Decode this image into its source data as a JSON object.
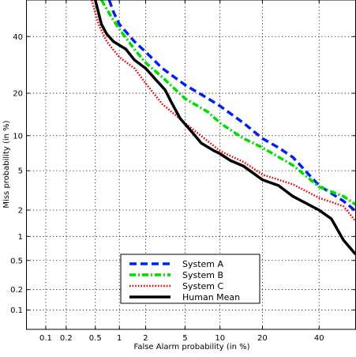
{
  "chart_data": {
    "type": "line",
    "title": "",
    "xlabel": "False Alarm probability (in %)",
    "ylabel": "Miss probability (in %)",
    "scale": "normal-deviate (DET)",
    "xlim": [
      0.05,
      55
    ],
    "ylim": [
      0.05,
      55
    ],
    "x_ticks": [
      0.1,
      0.2,
      0.5,
      1,
      2,
      5,
      10,
      20,
      40
    ],
    "x_tick_labels": [
      "0.1",
      "0.2",
      "0.5",
      "1",
      "2",
      "5",
      "10",
      "20",
      "40"
    ],
    "y_ticks": [
      0.1,
      0.2,
      0.5,
      1,
      2,
      5,
      10,
      20,
      40
    ],
    "y_tick_labels": [
      "0.1",
      "0.2",
      "0.5",
      "1",
      "2",
      "5",
      "10",
      "20",
      "40"
    ],
    "grid": true,
    "legend": "bottom-center",
    "series": [
      {
        "name": "System A",
        "color": "#0022ee",
        "style": "dashed",
        "points": [
          [
            0.75,
            55
          ],
          [
            0.85,
            50
          ],
          [
            1.0,
            45
          ],
          [
            1.5,
            38
          ],
          [
            2,
            34
          ],
          [
            3,
            28
          ],
          [
            5,
            22.5
          ],
          [
            8,
            18.5
          ],
          [
            10,
            16.5
          ],
          [
            15,
            12.5
          ],
          [
            20,
            9.5
          ],
          [
            25,
            8
          ],
          [
            30,
            6.6
          ],
          [
            40,
            3.6
          ],
          [
            50,
            2.5
          ],
          [
            55,
            1.95
          ]
        ]
      },
      {
        "name": "System B",
        "color": "#00dd00",
        "style": "dash-dot",
        "points": [
          [
            0.6,
            55
          ],
          [
            0.8,
            48
          ],
          [
            1,
            43
          ],
          [
            1.5,
            35
          ],
          [
            2,
            30
          ],
          [
            3,
            25
          ],
          [
            5,
            18.5
          ],
          [
            8,
            15
          ],
          [
            10,
            12.5
          ],
          [
            15,
            9.5
          ],
          [
            20,
            8
          ],
          [
            30,
            5.6
          ],
          [
            40,
            3.5
          ],
          [
            50,
            2.8
          ],
          [
            55,
            2.3
          ]
        ]
      },
      {
        "name": "System C",
        "color": "#ee0000",
        "style": "dotted",
        "points": [
          [
            0.45,
            55
          ],
          [
            0.55,
            45
          ],
          [
            0.7,
            38
          ],
          [
            1,
            32
          ],
          [
            1.5,
            28
          ],
          [
            2,
            23
          ],
          [
            3,
            17
          ],
          [
            5,
            12.5
          ],
          [
            8,
            9
          ],
          [
            10,
            7.5
          ],
          [
            15,
            6
          ],
          [
            20,
            4.6
          ],
          [
            30,
            3.7
          ],
          [
            40,
            2.7
          ],
          [
            50,
            2.2
          ],
          [
            55,
            1.5
          ]
        ]
      },
      {
        "name": "Human Mean",
        "color": "#000000",
        "style": "solid",
        "points": [
          [
            0.5,
            55
          ],
          [
            0.6,
            45
          ],
          [
            0.7,
            41
          ],
          [
            0.85,
            38
          ],
          [
            1.2,
            35
          ],
          [
            1.5,
            31
          ],
          [
            2,
            28
          ],
          [
            2.6,
            24
          ],
          [
            3.2,
            21
          ],
          [
            3.7,
            17.5
          ],
          [
            4.5,
            13.5
          ],
          [
            6,
            10.3
          ],
          [
            7,
            8.7
          ],
          [
            9,
            7.5
          ],
          [
            10,
            7.1
          ],
          [
            12,
            6.2
          ],
          [
            15,
            5.5
          ],
          [
            20,
            4.1
          ],
          [
            25,
            3.6
          ],
          [
            30,
            2.8
          ],
          [
            40,
            2.0
          ],
          [
            45,
            1.6
          ],
          [
            50,
            0.9
          ],
          [
            55,
            0.6
          ]
        ]
      }
    ]
  }
}
